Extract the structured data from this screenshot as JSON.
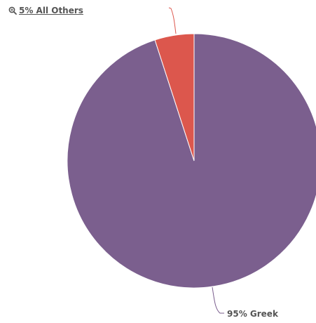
{
  "others_link": {
    "label": "5% All Others"
  },
  "chart_data": {
    "type": "pie",
    "slices": [
      {
        "label": "95% Greek",
        "value": 95,
        "color": "#7b5f8e"
      },
      {
        "label": "5% All Others",
        "value": 5,
        "color": "#dc574d"
      }
    ]
  }
}
